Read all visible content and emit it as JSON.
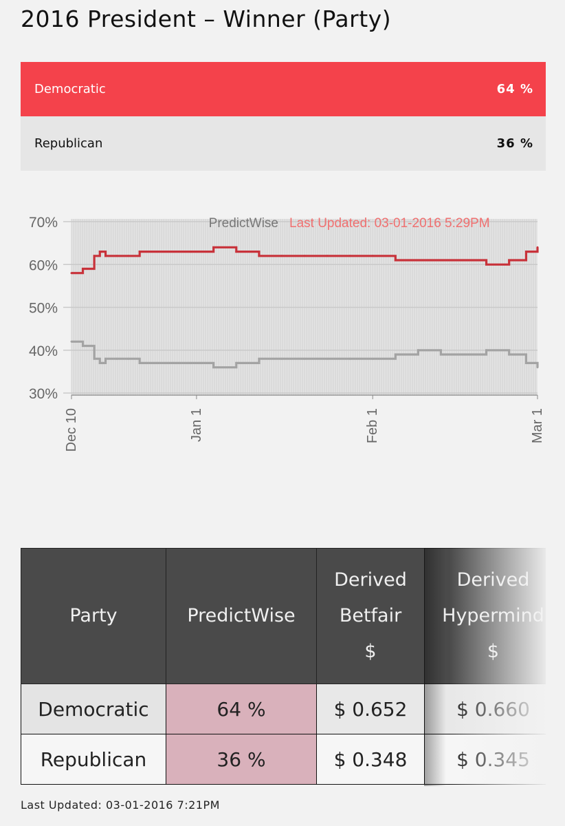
{
  "title": "2016 President – Winner (Party)",
  "summary": [
    {
      "party": "Democratic",
      "pct": "64 %"
    },
    {
      "party": "Republican",
      "pct": "36 %"
    }
  ],
  "colors": {
    "democratic": "#c8323a",
    "republican": "#a3a3a3",
    "accent": "#f4424b"
  },
  "chart_data": {
    "type": "line",
    "brand_label": "PredictWise",
    "updated_label": "Last Updated: 03-01-2016 5:29PM",
    "x_tick_labels": [
      "Dec 10",
      "Jan 1",
      "Feb 1",
      "Mar 1"
    ],
    "x_range": [
      "2015-12-10",
      "2016-03-01"
    ],
    "ylim": [
      30,
      70
    ],
    "y_tick_labels": [
      "70%",
      "60%",
      "50%",
      "40%",
      "30%"
    ],
    "y_ticks": [
      70,
      60,
      50,
      40,
      30
    ],
    "grid": true,
    "x": [
      "2015-12-10",
      "2015-12-12",
      "2015-12-14",
      "2015-12-15",
      "2015-12-16",
      "2015-12-18",
      "2015-12-20",
      "2015-12-22",
      "2015-12-25",
      "2015-12-28",
      "2015-12-31",
      "2016-01-04",
      "2016-01-08",
      "2016-01-12",
      "2016-01-16",
      "2016-01-20",
      "2016-01-24",
      "2016-01-28",
      "2016-02-01",
      "2016-02-05",
      "2016-02-09",
      "2016-02-13",
      "2016-02-17",
      "2016-02-21",
      "2016-02-25",
      "2016-02-28",
      "2016-03-01"
    ],
    "series": [
      {
        "name": "Democratic",
        "values": [
          58,
          59,
          62,
          63,
          62,
          62,
          62,
          63,
          63,
          63,
          63,
          64,
          63,
          62,
          62,
          62,
          62,
          62,
          62,
          61,
          61,
          61,
          61,
          60,
          61,
          63,
          64
        ]
      },
      {
        "name": "Republican",
        "values": [
          42,
          41,
          38,
          37,
          38,
          38,
          38,
          37,
          37,
          37,
          37,
          36,
          37,
          38,
          38,
          38,
          38,
          38,
          38,
          39,
          40,
          39,
          39,
          40,
          39,
          37,
          36
        ]
      }
    ]
  },
  "table": {
    "headers": [
      "Party",
      "PredictWise",
      "Derived Betfair $",
      "Derived Hypermind $"
    ],
    "rows": [
      {
        "party": "Democratic",
        "predictwise": "64 %",
        "betfair": "$ 0.652",
        "hypermind": "$ 0.660"
      },
      {
        "party": "Republican",
        "predictwise": "36 %",
        "betfair": "$ 0.348",
        "hypermind": "$ 0.345"
      }
    ]
  },
  "footer": "Last Updated: 03-01-2016 7:21PM"
}
